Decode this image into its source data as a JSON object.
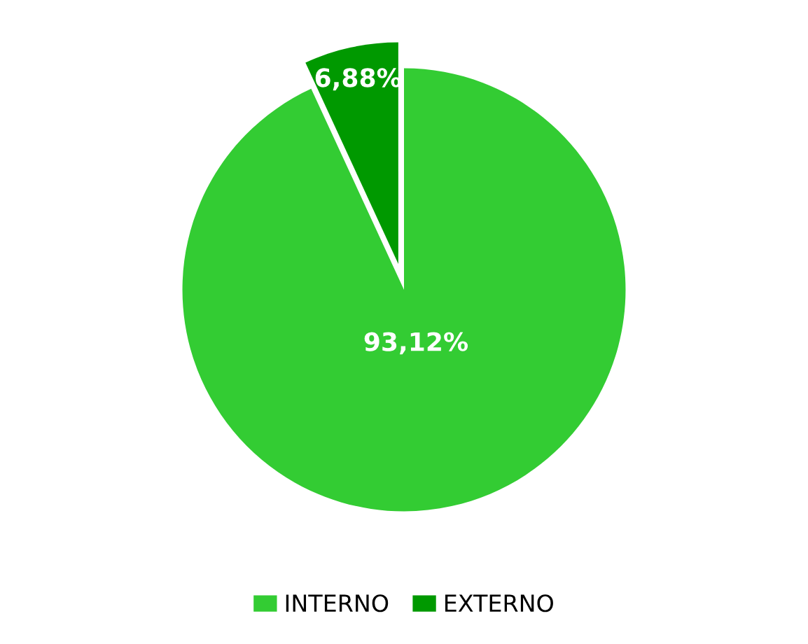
{
  "chart_data": {
    "type": "pie",
    "categories": [
      "INTERNO",
      "EXTERNO"
    ],
    "values": [
      93.12,
      6.88
    ],
    "colors": [
      "#33cc33",
      "#009900"
    ],
    "value_labels": [
      "93,12%",
      "6,88%"
    ],
    "legend": "bottom"
  }
}
